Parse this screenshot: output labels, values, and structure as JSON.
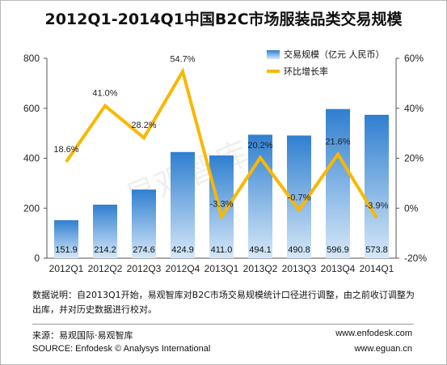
{
  "title": "2012Q1-2014Q1中国B2C市场服装品类交易规模",
  "watermark": "易观智库",
  "note": "数据说明：自2013Q1开始，易观智库对B2C市场交易规模统计口径进行调整，由之前收订调整为出库，并对历史数据进行校对。",
  "source_cn": "来源：易观国际·易观智库",
  "source_en": "SOURCE: Enfodesk © Analysys International",
  "url1": "www.enfodesk.com",
  "url2": "www.eguan.cn",
  "colors": {
    "bar_top": "#2f7fd0",
    "bar_bottom": "#d6e8f8",
    "line": "#f8b800"
  },
  "chart_data": {
    "type": "bar",
    "categories": [
      "2012Q1",
      "2012Q2",
      "2012Q3",
      "2012Q4",
      "2013Q1",
      "2013Q2",
      "2013Q3",
      "2013Q4",
      "2014Q1"
    ],
    "series": [
      {
        "name": "交易规模（亿元 人民币）",
        "type": "bar",
        "axis": "left",
        "values": [
          151.9,
          214.2,
          274.6,
          424.9,
          411.0,
          494.1,
          490.8,
          596.9,
          573.8
        ],
        "labels": [
          "151.9",
          "214.2",
          "274.6",
          "424.9",
          "411.0",
          "494.1",
          "490.8",
          "596.9",
          "573.8"
        ]
      },
      {
        "name": "环比增长率",
        "type": "line",
        "axis": "right",
        "values": [
          18.6,
          41.0,
          28.2,
          54.7,
          -3.3,
          20.2,
          -0.7,
          21.6,
          -3.9
        ],
        "labels": [
          "18.6%",
          "41.0%",
          "28.2%",
          "54.7%",
          "-3.3%",
          "20.2%",
          "-0.7%",
          "21.6%",
          "-3.9%"
        ]
      }
    ],
    "y_left": {
      "range": [
        0,
        800
      ],
      "ticks": [
        "0",
        "200",
        "400",
        "600",
        "800"
      ]
    },
    "y_right": {
      "range": [
        -20,
        60
      ],
      "ticks": [
        "-20%",
        "0%",
        "20%",
        "40%",
        "60%"
      ]
    },
    "legend": "top-right",
    "grid": false
  }
}
